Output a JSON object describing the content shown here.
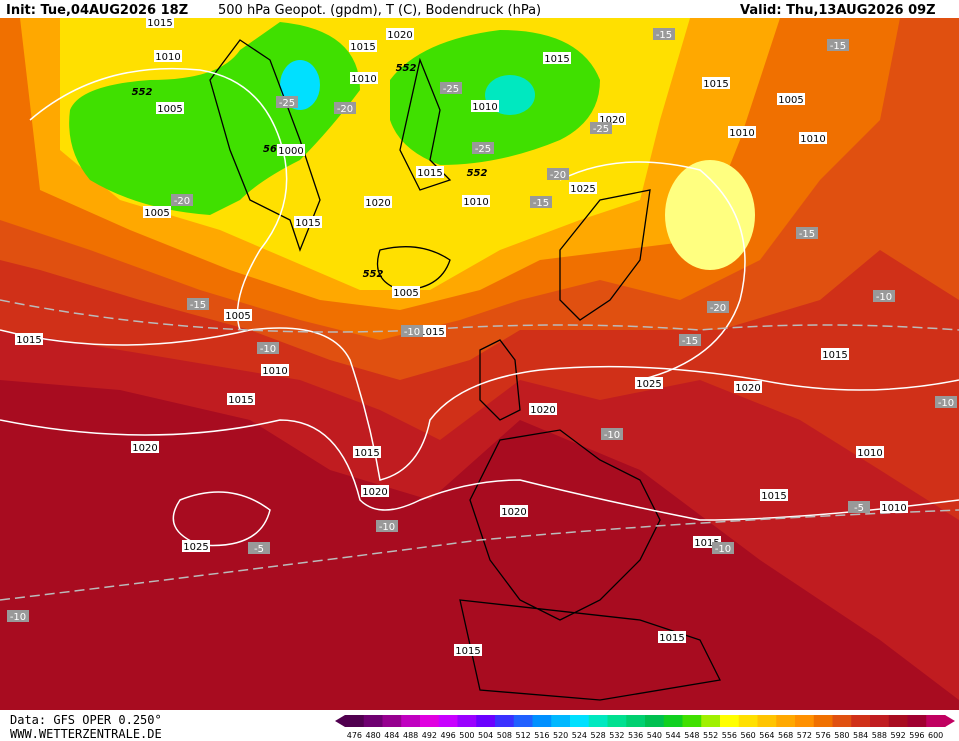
{
  "header": {
    "init": "Init: Tue,04AUG2026 18Z",
    "title": "500 hPa Geopot. (gpdm), T (C), Bodendruck (hPa)",
    "valid": "Valid: Thu,13AUG2026 09Z"
  },
  "footer": {
    "data": "Data: GFS OPER 0.250°",
    "site": "WWW.WETTERZENTRALE.DE"
  },
  "colorbar": {
    "levels": [
      476,
      480,
      484,
      488,
      492,
      496,
      500,
      504,
      508,
      512,
      516,
      520,
      524,
      528,
      532,
      536,
      540,
      544,
      548,
      552,
      556,
      560,
      564,
      568,
      572,
      576,
      580,
      584,
      588,
      592,
      596,
      600
    ],
    "colors": [
      "#50004f",
      "#6e0070",
      "#96008f",
      "#c000c0",
      "#e000e0",
      "#c800ff",
      "#9a00ff",
      "#6a00ff",
      "#3a30ff",
      "#2060ff",
      "#0090ff",
      "#00b8ff",
      "#00e0ff",
      "#00e8c0",
      "#00e090",
      "#00d070",
      "#00c050",
      "#10d020",
      "#40e000",
      "#a0f000",
      "#ffff00",
      "#ffe000",
      "#ffc400",
      "#ffa800",
      "#ff9000",
      "#f07000",
      "#e05010",
      "#d03018",
      "#c01c20",
      "#a80c20",
      "#a00030",
      "#c00060"
    ]
  },
  "pressure_labels": [
    "1015",
    "1010",
    "1005",
    "1005",
    "1015",
    "1020",
    "1010",
    "1000",
    "1015",
    "1020",
    "1010",
    "1015",
    "1005",
    "1005",
    "1015",
    "1015",
    "1010",
    "1015",
    "1020",
    "1015",
    "1020",
    "1025",
    "1020",
    "1020",
    "1025",
    "1020",
    "1015",
    "1010",
    "1015",
    "1010",
    "1015",
    "1015",
    "1015",
    "1025",
    "1020",
    "1015",
    "1010",
    "1015",
    "1005",
    "1010",
    "1010"
  ],
  "temperature_labels": [
    "-15",
    "-15",
    "-25",
    "-20",
    "-25",
    "-25",
    "-25",
    "-20",
    "-20",
    "-15",
    "-15",
    "-15",
    "-10",
    "-10",
    "-20",
    "-15",
    "-10",
    "-10",
    "-10",
    "-5",
    "-10",
    "-5",
    "-10",
    "-10"
  ],
  "geopotential_labels": [
    "552",
    "552",
    "552",
    "552",
    "56"
  ]
}
